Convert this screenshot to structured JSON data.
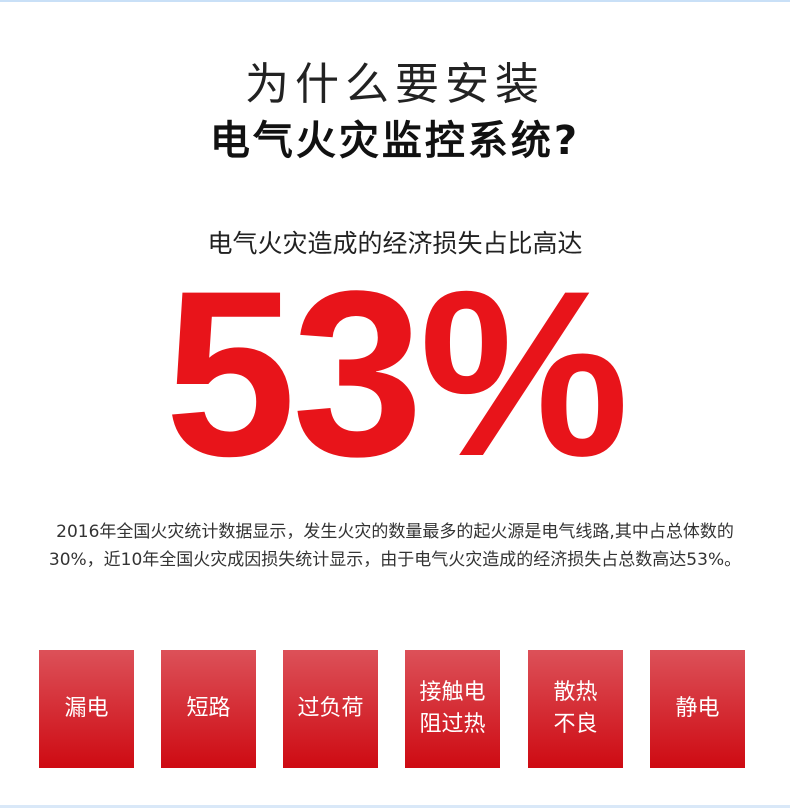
{
  "heading": {
    "line1": "为什么要安装",
    "line2": "电气火灾监控系统?"
  },
  "subtitle": "电气火灾造成的经济损失占比高达",
  "highlight": {
    "value": "53%",
    "color": "#e8141a"
  },
  "paragraph": "2016年全国火灾统计数据显示，发生火灾的数量最多的起火源是电气线路,其中占总体数的30%，近10年全国火灾成因损失统计显示，由于电气火灾造成的经济损失占总数高达53%。",
  "causes": [
    {
      "label": "漏电"
    },
    {
      "label": "短路"
    },
    {
      "label": "过负荷"
    },
    {
      "label": "接触电\n阻过热"
    },
    {
      "label": "散热\n不良"
    },
    {
      "label": "静电"
    }
  ]
}
